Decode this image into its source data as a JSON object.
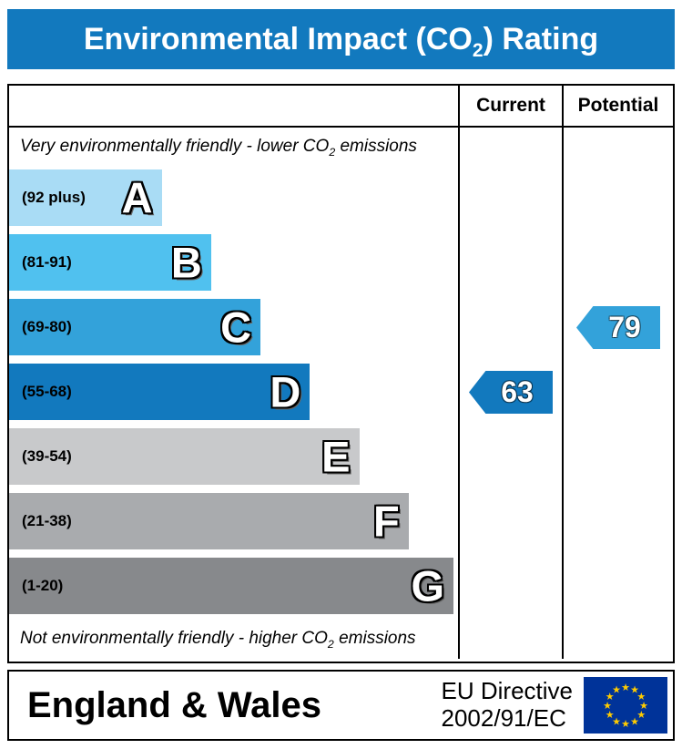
{
  "title": {
    "pre": "Environmental Impact (CO",
    "sub": "2",
    "post": ") Rating"
  },
  "header": {
    "current": "Current",
    "potential": "Potential"
  },
  "notes": {
    "top": {
      "pre": "Very environmentally friendly - lower CO",
      "sub": "2",
      "post": " emissions"
    },
    "bottom": {
      "pre": "Not environmentally friendly - higher CO",
      "sub": "2",
      "post": " emissions"
    }
  },
  "footer": {
    "region": "England & Wales",
    "directive_line1": "EU Directive",
    "directive_line2": "2002/91/EC",
    "flag_icon": "eu-flag"
  },
  "colors": {
    "banner_blue": "#1279be",
    "border_black": "#000000",
    "eu_flag_blue": "#003399",
    "eu_star_yellow": "#ffcc00"
  },
  "chart_data": {
    "type": "bar",
    "title": "Environmental Impact (CO2) Rating",
    "xlabel": "",
    "ylabel": "",
    "legend_position": "none",
    "columns": [
      "Current",
      "Potential"
    ],
    "bands": [
      {
        "letter": "A",
        "range_label": "(92 plus)",
        "min": 92,
        "max": 100,
        "color": "#a9dcf5",
        "width_pct": 34
      },
      {
        "letter": "B",
        "range_label": "(81-91)",
        "min": 81,
        "max": 91,
        "color": "#50c1ef",
        "width_pct": 45
      },
      {
        "letter": "C",
        "range_label": "(69-80)",
        "min": 69,
        "max": 80,
        "color": "#33a2da",
        "width_pct": 56
      },
      {
        "letter": "D",
        "range_label": "(55-68)",
        "min": 55,
        "max": 68,
        "color": "#1279be",
        "width_pct": 67
      },
      {
        "letter": "E",
        "range_label": "(39-54)",
        "min": 39,
        "max": 54,
        "color": "#c8c9cb",
        "width_pct": 78
      },
      {
        "letter": "F",
        "range_label": "(21-38)",
        "min": 21,
        "max": 38,
        "color": "#a9abae",
        "width_pct": 89
      },
      {
        "letter": "G",
        "range_label": "(1-20)",
        "min": 1,
        "max": 20,
        "color": "#87898c",
        "width_pct": 99
      }
    ],
    "current": {
      "value": 63,
      "band": "D",
      "color": "#1279be"
    },
    "potential": {
      "value": 79,
      "band": "C",
      "color": "#33a2da"
    }
  }
}
